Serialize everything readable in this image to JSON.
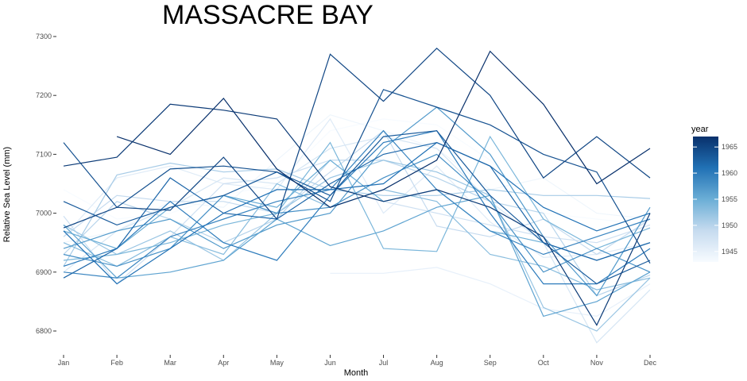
{
  "chart_data": {
    "type": "line",
    "title": "MASSACRE BAY",
    "xlabel": "Month",
    "ylabel": "Relative Sea Level (mm)",
    "categories": [
      "Jan",
      "Feb",
      "Mar",
      "Apr",
      "May",
      "Jun",
      "Jul",
      "Aug",
      "Sep",
      "Oct",
      "Nov",
      "Dec"
    ],
    "yticks": [
      6800,
      6900,
      7000,
      7100,
      7200,
      7300
    ],
    "ylim": [
      6760,
      7310
    ],
    "grid": false,
    "legend": {
      "title": "year",
      "position": "right",
      "type": "colorbar",
      "range": [
        1943,
        1967
      ],
      "ticks": [
        1945,
        1950,
        1955,
        1960,
        1965
      ],
      "colors": [
        "#f7fbff",
        "#c6dbef",
        "#6baed6",
        "#2171b5",
        "#08306b"
      ]
    },
    "series": [
      {
        "year": 1943,
        "values": [
          7040,
          6990,
          7000,
          7030,
          7050,
          7140,
          7160,
          7150,
          7090,
          7000,
          6990,
          6980
        ]
      },
      {
        "year": 1944,
        "values": [
          6950,
          6970,
          7020,
          7010,
          7090,
          7167,
          7140,
          7110,
          7040,
          7060,
          7000,
          6990
        ]
      },
      {
        "year": 1945,
        "values": [
          null,
          null,
          null,
          null,
          null,
          6898,
          6898,
          6908,
          6880,
          6838,
          6825,
          6880
        ]
      },
      {
        "year": 1946,
        "values": [
          6960,
          7060,
          7080,
          7050,
          7040,
          7160,
          7000,
          7080,
          6985,
          6925,
          6930,
          6950
        ]
      },
      {
        "year": 1947,
        "values": [
          6900,
          6970,
          7010,
          7060,
          7050,
          7110,
          7130,
          7110,
          7020,
          6950,
          6780,
          6870
        ]
      },
      {
        "year": 1948,
        "values": [
          6995,
          6880,
          6960,
          7050,
          7060,
          7090,
          7020,
          7000,
          6980,
          6960,
          6950,
          6980
        ]
      },
      {
        "year": 1949,
        "values": [
          6960,
          7030,
          7020,
          7020,
          7000,
          7070,
          7140,
          6978,
          6960,
          6990,
          6930,
          6990
        ]
      },
      {
        "year": 1950,
        "values": [
          6930,
          7020,
          6990,
          6950,
          6990,
          7090,
          7090,
          7060,
          7020,
          7000,
          6860,
          6895
        ]
      },
      {
        "year": 1951,
        "values": [
          6910,
          7065,
          7085,
          7070,
          7075,
          7040,
          7030,
          7030,
          7040,
          7030,
          7030,
          7025
        ]
      },
      {
        "year": 1952,
        "values": [
          6980,
          6930,
          6970,
          6920,
          7000,
          7060,
          7090,
          7070,
          7030,
          6840,
          6800,
          6890
        ]
      },
      {
        "year": 1953,
        "values": [
          6950,
          6910,
          6960,
          6930,
          7050,
          7010,
          7040,
          7020,
          6930,
          6910,
          6870,
          6890
        ]
      },
      {
        "year": 1954,
        "values": [
          6920,
          6930,
          6950,
          6980,
          7000,
          7120,
          6940,
          6935,
          7130,
          6990,
          6940,
          6975
        ]
      },
      {
        "year": 1955,
        "values": [
          6970,
          6940,
          7010,
          7030,
          7010,
          7090,
          7020,
          7040,
          6970,
          6950,
          6920,
          6950
        ]
      },
      {
        "year": 1956,
        "values": [
          6980,
          6890,
          6900,
          6920,
          6990,
          6945,
          6970,
          7010,
          7030,
          6825,
          6850,
          6900
        ]
      },
      {
        "year": 1957,
        "values": [
          6940,
          6970,
          6990,
          6940,
          6980,
          7000,
          7110,
          7180,
          7100,
          6960,
          6860,
          7010
        ]
      },
      {
        "year": 1958,
        "values": [
          6930,
          6910,
          6940,
          7030,
          7000,
          7010,
          7060,
          7100,
          7020,
          6900,
          6940,
          6900
        ]
      },
      {
        "year": 1959,
        "values": [
          6900,
          6890,
          6960,
          6990,
          7020,
          7040,
          7140,
          7040,
          6970,
          6930,
          6960,
          6990
        ]
      },
      {
        "year": 1960,
        "values": [
          6910,
          6940,
          7020,
          6950,
          6920,
          7030,
          7120,
          7140,
          7000,
          6880,
          6880,
          6940
        ]
      },
      {
        "year": 1961,
        "values": [
          6970,
          6880,
          6940,
          7000,
          7040,
          7040,
          7050,
          7120,
          7080,
          7010,
          6970,
          7000
        ]
      },
      {
        "year": 1962,
        "values": [
          6890,
          6940,
          7060,
          7000,
          6990,
          7050,
          7100,
          7120,
          7080,
          6950,
          6920,
          6950
        ]
      },
      {
        "year": 1963,
        "values": [
          7020,
          6980,
          7010,
          7030,
          7070,
          7030,
          7130,
          7140,
          7030,
          6950,
          6880,
          6920
        ]
      },
      {
        "year": 1964,
        "values": [
          7120,
          7010,
          7075,
          7080,
          7070,
          7020,
          7210,
          7180,
          7150,
          7100,
          7070,
          6915
        ]
      },
      {
        "year": 1965,
        "values": [
          6975,
          7010,
          7005,
          7095,
          6990,
          7270,
          7190,
          7280,
          7200,
          7060,
          7130,
          7060
        ]
      },
      {
        "year": 1966,
        "values": [
          7080,
          7095,
          7185,
          7175,
          7160,
          7045,
          7020,
          7040,
          7010,
          6960,
          6810,
          7000
        ]
      },
      {
        "year": 1967,
        "values": [
          null,
          7130,
          7100,
          7195,
          7075,
          7010,
          7040,
          7090,
          7275,
          7185,
          7050,
          7110
        ]
      }
    ]
  }
}
